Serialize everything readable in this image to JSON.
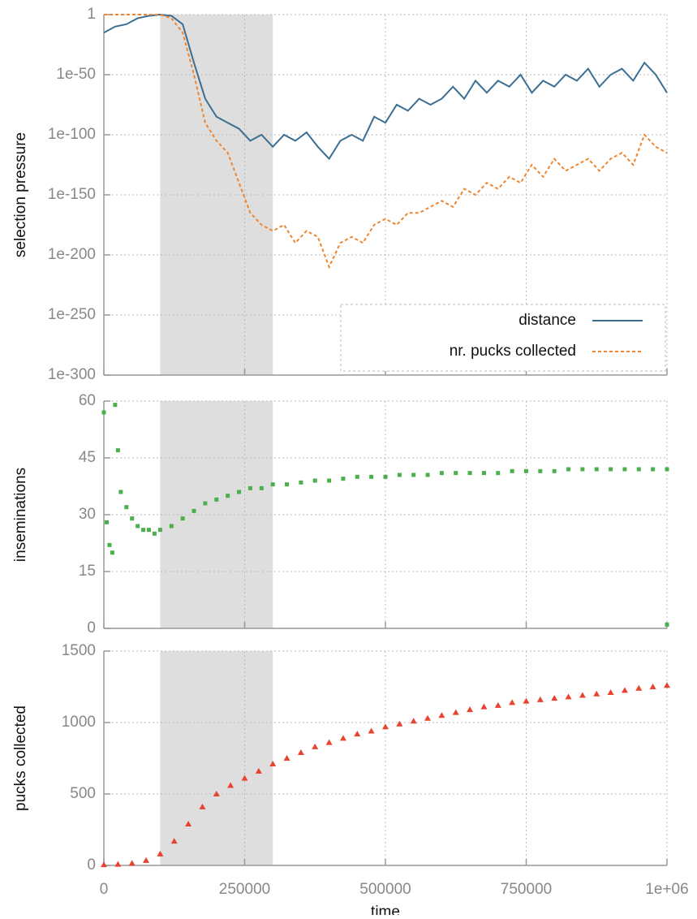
{
  "chart_data": [
    {
      "type": "line",
      "ylabel": "selection pressure",
      "log": true,
      "grid": true,
      "legend": "lower right",
      "highlight": [
        100000,
        300000
      ],
      "xlim": [
        0,
        1000000
      ],
      "xticks": [
        0,
        250000,
        500000,
        750000,
        1000000
      ],
      "ylim": [
        1e-300,
        1
      ],
      "yticks": [
        {
          "value": 1e-300,
          "label": "1e-300"
        },
        {
          "value": 1e-250,
          "label": "1e-250"
        },
        {
          "value": 1e-200,
          "label": "1e-200"
        },
        {
          "value": 1e-150,
          "label": "1e-150"
        },
        {
          "value": 1e-100,
          "label": "1e-100"
        },
        {
          "value": 1e-50,
          "label": "1e-50"
        },
        1
      ],
      "x": [
        0,
        20000,
        40000,
        60000,
        80000,
        100000,
        120000,
        140000,
        160000,
        180000,
        200000,
        220000,
        240000,
        260000,
        280000,
        300000,
        320000,
        340000,
        360000,
        380000,
        400000,
        420000,
        440000,
        460000,
        480000,
        500000,
        520000,
        540000,
        560000,
        580000,
        600000,
        620000,
        640000,
        660000,
        680000,
        700000,
        720000,
        740000,
        760000,
        780000,
        800000,
        820000,
        840000,
        860000,
        880000,
        900000,
        920000,
        940000,
        960000,
        980000,
        1000000
      ],
      "series": [
        {
          "name": "distance",
          "color": "#3b6e92",
          "dash": false,
          "values": [
            1e-15,
            1e-10,
            1e-08,
            0.001,
            0.1,
            1,
            0.1,
            1e-08,
            1e-40,
            1e-70,
            1e-85,
            1e-90,
            1e-95,
            1e-105,
            1e-100,
            1e-110,
            1e-100,
            1e-105,
            1e-98,
            1e-110,
            1e-120,
            1e-105,
            1e-100,
            1e-105,
            1e-85,
            1e-90,
            1e-75,
            1e-80,
            1e-70,
            1e-75,
            1e-70,
            1e-60,
            1e-70,
            1e-55,
            1e-65,
            1e-55,
            1e-60,
            1e-50,
            1e-65,
            1e-55,
            1e-60,
            1e-50,
            1e-55,
            1e-45,
            1e-60,
            1e-50,
            1e-45,
            1e-55,
            1e-40,
            1e-50,
            1e-65
          ]
        },
        {
          "name": "nr. pucks collected",
          "color": "#f0852d",
          "dash": true,
          "values": [
            1,
            1,
            1,
            1,
            1,
            1,
            0.001,
            1e-15,
            1e-50,
            1e-90,
            1e-105,
            1e-115,
            1e-140,
            1e-165,
            1e-175,
            1e-180,
            1e-175,
            1e-190,
            1e-180,
            1e-185,
            1e-210,
            1e-190,
            1e-185,
            1e-190,
            1e-175,
            1e-170,
            1e-175,
            1e-165,
            1e-165,
            1e-160,
            1e-155,
            1e-160,
            1e-145,
            1e-150,
            1e-140,
            1e-145,
            1e-135,
            1e-140,
            1e-125,
            1e-135,
            1e-120,
            1e-130,
            1e-125,
            1e-120,
            1e-130,
            1e-120,
            1e-115,
            1e-125,
            1e-100,
            1e-110,
            1e-115
          ]
        }
      ]
    },
    {
      "type": "scatter",
      "ylabel": "inseminations",
      "log": false,
      "grid": true,
      "marker": "square",
      "highlight": [
        100000,
        300000
      ],
      "xlim": [
        0,
        1000000
      ],
      "xticks": [
        0,
        250000,
        500000,
        750000,
        1000000
      ],
      "ylim": [
        0,
        60
      ],
      "yticks": [
        0,
        15,
        30,
        45,
        60
      ],
      "x": [
        0,
        5000,
        10000,
        15000,
        20000,
        25000,
        30000,
        40000,
        50000,
        60000,
        70000,
        80000,
        90000,
        100000,
        120000,
        140000,
        160000,
        180000,
        200000,
        220000,
        240000,
        260000,
        280000,
        300000,
        325000,
        350000,
        375000,
        400000,
        425000,
        450000,
        475000,
        500000,
        525000,
        550000,
        575000,
        600000,
        625000,
        650000,
        675000,
        700000,
        725000,
        750000,
        775000,
        800000,
        825000,
        850000,
        875000,
        900000,
        925000,
        950000,
        975000,
        1000000,
        1000000
      ],
      "series": [
        {
          "name": "inseminations",
          "color": "#4caf4c",
          "values": [
            57,
            28,
            22,
            20,
            59,
            47,
            36,
            32,
            29,
            27,
            26,
            26,
            25,
            26,
            27,
            29,
            31,
            33,
            34,
            35,
            36,
            37,
            37,
            38,
            38,
            38.5,
            39,
            39,
            39.5,
            40,
            40,
            40,
            40.5,
            40.5,
            40.5,
            41,
            41,
            41,
            41,
            41,
            41.5,
            41.5,
            41.5,
            41.5,
            42,
            42,
            42,
            42,
            42,
            42,
            42,
            42,
            1
          ]
        }
      ]
    },
    {
      "type": "scatter",
      "ylabel": "pucks collected",
      "xlabel": "time",
      "log": false,
      "grid": true,
      "marker": "triangle",
      "highlight": [
        100000,
        300000
      ],
      "xlim": [
        0,
        1000000
      ],
      "xticks": [
        0,
        250000,
        500000,
        750000,
        {
          "value": 1000000,
          "label": "1e+06"
        }
      ],
      "ylim": [
        0,
        1500
      ],
      "yticks": [
        0,
        500,
        1000,
        1500
      ],
      "x": [
        0,
        25000,
        50000,
        75000,
        100000,
        125000,
        150000,
        175000,
        200000,
        225000,
        250000,
        275000,
        300000,
        325000,
        350000,
        375000,
        400000,
        425000,
        450000,
        475000,
        500000,
        525000,
        550000,
        575000,
        600000,
        625000,
        650000,
        675000,
        700000,
        725000,
        750000,
        775000,
        800000,
        825000,
        850000,
        875000,
        900000,
        925000,
        950000,
        975000,
        1000000
      ],
      "series": [
        {
          "name": "pucks collected",
          "color": "#e8432e",
          "values": [
            5,
            8,
            15,
            35,
            80,
            170,
            290,
            410,
            500,
            560,
            610,
            660,
            710,
            750,
            790,
            830,
            860,
            890,
            920,
            940,
            970,
            990,
            1010,
            1030,
            1050,
            1070,
            1090,
            1110,
            1120,
            1140,
            1150,
            1160,
            1170,
            1180,
            1190,
            1200,
            1210,
            1225,
            1240,
            1250,
            1260
          ]
        }
      ]
    }
  ]
}
